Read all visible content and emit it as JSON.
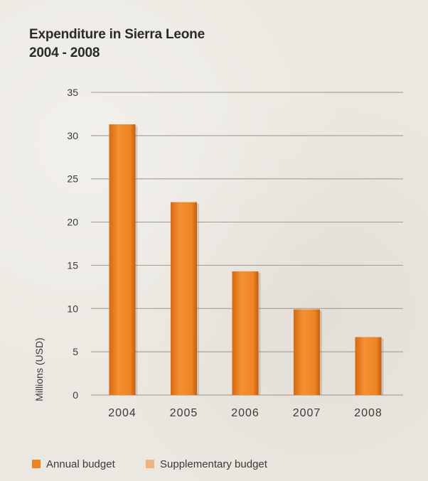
{
  "chart_data": {
    "type": "bar",
    "title": "Expenditure in Sierra Leone",
    "subtitle": "2004 - 2008",
    "ylabel": "Millions (USD)",
    "xlabel": "",
    "categories": [
      "2004",
      "2005",
      "2006",
      "2007",
      "2008"
    ],
    "series": [
      {
        "name": "Annual budget",
        "values": [
          31.3,
          22.3,
          14.3,
          9.9,
          6.7
        ],
        "color": "#ee8421"
      },
      {
        "name": "Supplementary budget",
        "values": [
          0,
          0,
          0,
          0,
          0
        ],
        "color": "#f6b178"
      }
    ],
    "ylim": [
      0,
      35
    ],
    "yticks": [
      "0",
      "5",
      "10",
      "15",
      "20",
      "25",
      "30",
      "35"
    ],
    "grid": true,
    "legend_position": "bottom-left"
  }
}
